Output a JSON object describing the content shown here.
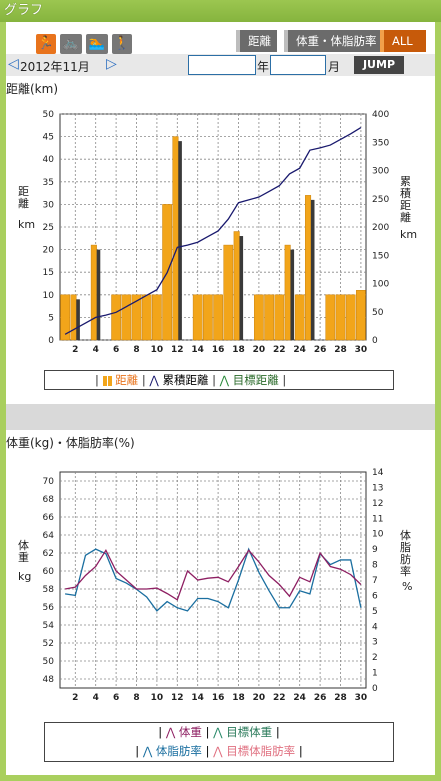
{
  "header": {
    "title": "グラフ"
  },
  "toolbar": {
    "sport_icons": [
      "running-icon",
      "cycling-icon",
      "swimming-icon",
      "walking-icon"
    ],
    "tabs": [
      {
        "label": "距離"
      },
      {
        "label": "体重・体脂肪率"
      },
      {
        "label": "ALL"
      }
    ]
  },
  "nav": {
    "month_label": "2012年11月",
    "year_unit": "年",
    "month_unit": "月",
    "year_value": "",
    "month_value": "",
    "jump_label": "JUMP"
  },
  "colors": {
    "bar": "#f2a51a",
    "bar_dark": "#3a3a3a",
    "cumulative": "#1a1a6e",
    "weight": "#8e1f62",
    "body_fat": "#1b6fa0"
  },
  "distance_chart": {
    "title": "距離(km)",
    "left_label": "距離",
    "left_unit": "km",
    "right_label": "累積距離",
    "right_unit": "km",
    "legend": {
      "daily": "距離",
      "cumulative": "累積距離",
      "target": "目標距離"
    }
  },
  "weight_chart": {
    "title": "体重(kg)・体脂肪率(%)",
    "left_label": "体重",
    "left_unit": "kg",
    "right_label": "体脂肪率",
    "right_unit": "%",
    "legend": {
      "weight": "体重",
      "target_weight": "目標体重",
      "fat": "体脂肪率",
      "target_fat": "目標体脂肪率"
    }
  },
  "chart_data": [
    {
      "type": "bar",
      "x": [
        1,
        2,
        3,
        4,
        5,
        6,
        7,
        8,
        9,
        10,
        11,
        12,
        13,
        14,
        15,
        16,
        17,
        18,
        19,
        20,
        21,
        22,
        23,
        24,
        25,
        26,
        27,
        28,
        29,
        30
      ],
      "tick_labels": [
        "2",
        "4",
        "6",
        "8",
        "10",
        "12",
        "14",
        "16",
        "18",
        "20",
        "22",
        "24",
        "26",
        "28",
        "30"
      ],
      "ylim": [
        0,
        50
      ],
      "y2lim": [
        0,
        400
      ],
      "yticks": [
        0,
        5,
        10,
        15,
        20,
        25,
        30,
        35,
        40,
        45,
        50
      ],
      "y2ticks": [
        0,
        50,
        100,
        150,
        200,
        250,
        300,
        350,
        400
      ],
      "series": [
        {
          "name": "距離",
          "type": "bar",
          "values": [
            10,
            10,
            null,
            21,
            null,
            10,
            10,
            10,
            10,
            10,
            30,
            45,
            null,
            10,
            10,
            10,
            21,
            24,
            null,
            10,
            10,
            10,
            21,
            10,
            32,
            null,
            10,
            10,
            10,
            11
          ]
        },
        {
          "name": "目標距離",
          "type": "bar",
          "values": [
            null,
            9,
            null,
            20,
            null,
            null,
            null,
            null,
            null,
            null,
            null,
            44,
            null,
            null,
            null,
            null,
            null,
            23,
            null,
            null,
            null,
            null,
            20,
            null,
            31,
            null,
            null,
            null,
            null,
            null
          ]
        },
        {
          "name": "累積距離",
          "type": "line",
          "axis": "right",
          "values": [
            10,
            20,
            30,
            40,
            44,
            49,
            59,
            69,
            79,
            89,
            119,
            164,
            168,
            173,
            183,
            193,
            214,
            243,
            248,
            253,
            263,
            273,
            294,
            304,
            336,
            340,
            345,
            355,
            365,
            376
          ]
        }
      ]
    },
    {
      "type": "line",
      "x": [
        1,
        2,
        3,
        4,
        5,
        6,
        7,
        8,
        9,
        10,
        11,
        12,
        13,
        14,
        15,
        16,
        17,
        18,
        19,
        20,
        21,
        22,
        23,
        24,
        25,
        26,
        27,
        28,
        29,
        30
      ],
      "tick_labels": [
        "2",
        "4",
        "6",
        "8",
        "10",
        "12",
        "14",
        "16",
        "18",
        "20",
        "22",
        "24",
        "26",
        "28",
        "30"
      ],
      "ylim": [
        47,
        71
      ],
      "y2lim": [
        0,
        14
      ],
      "yticks": [
        48,
        50,
        52,
        54,
        56,
        58,
        60,
        62,
        64,
        66,
        68,
        70
      ],
      "y2ticks": [
        0,
        1,
        2,
        3,
        4,
        5,
        6,
        7,
        8,
        9,
        10,
        11,
        12,
        13,
        14
      ],
      "series": [
        {
          "name": "体重",
          "axis": "left",
          "values": [
            58.0,
            58.2,
            59.5,
            60.5,
            62.3,
            60.0,
            59.0,
            58.0,
            58.0,
            58.1,
            57.5,
            56.8,
            60.0,
            59.0,
            59.2,
            59.3,
            58.8,
            60.5,
            62.3,
            61.0,
            59.5,
            58.5,
            57.2,
            59.3,
            58.8,
            62.0,
            60.5,
            60.2,
            59.6,
            58.5
          ]
        },
        {
          "name": "体脂肪率",
          "axis": "right",
          "values": [
            6.1,
            6.0,
            8.6,
            9.0,
            8.7,
            7.1,
            6.8,
            6.4,
            5.9,
            5.0,
            5.6,
            5.2,
            5.0,
            5.8,
            5.8,
            5.6,
            5.2,
            7.0,
            9.0,
            7.5,
            6.3,
            5.2,
            5.2,
            6.3,
            6.1,
            8.7,
            8.0,
            8.3,
            8.3,
            5.2
          ]
        }
      ]
    }
  ]
}
